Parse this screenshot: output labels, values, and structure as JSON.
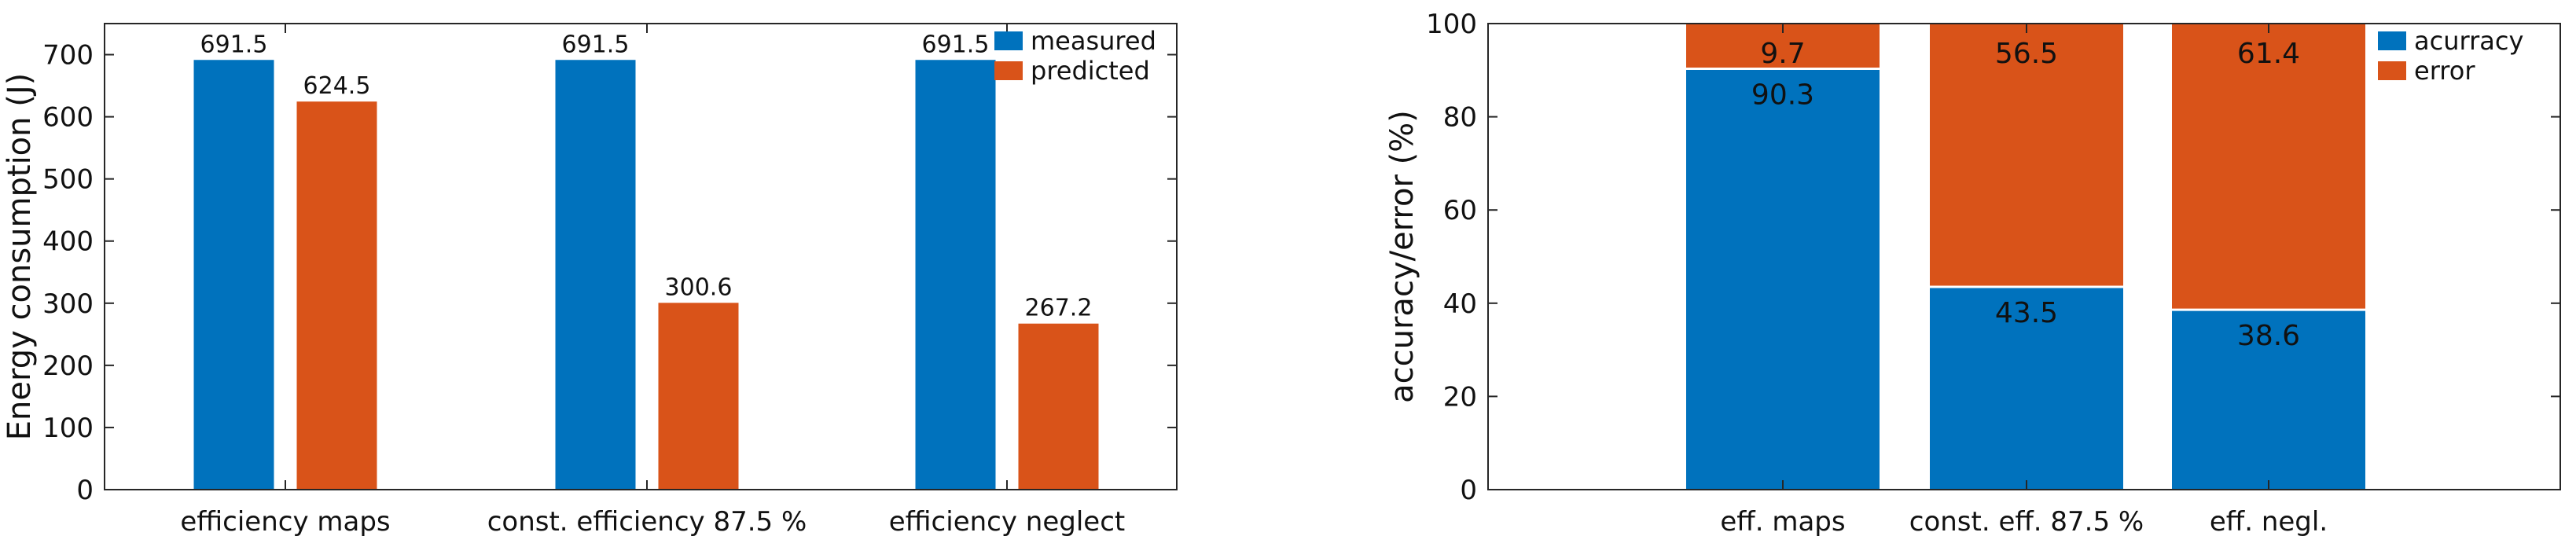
{
  "chart_data": [
    {
      "type": "bar",
      "title": "",
      "xlabel": "",
      "ylabel": "Energy consumption (J)",
      "ylim": [
        0,
        750
      ],
      "yticks": [
        0,
        100,
        200,
        300,
        400,
        500,
        600,
        700
      ],
      "categories": [
        "efficiency maps",
        "const. efficiency 87.5 %",
        "efficiency neglect"
      ],
      "series": [
        {
          "name": "measured",
          "color": "#0072BD",
          "values": [
            691.5,
            691.5,
            691.5
          ]
        },
        {
          "name": "predicted",
          "color": "#D95319",
          "values": [
            624.5,
            300.6,
            267.2
          ]
        }
      ],
      "data_labels": [
        [
          "691.5",
          "691.5",
          "691.5"
        ],
        [
          "624.5",
          "300.6",
          "267.2"
        ]
      ],
      "legend": "top-right",
      "grid": false
    },
    {
      "type": "bar",
      "stacked": true,
      "title": "",
      "xlabel": "",
      "ylabel": "accuracy/error (%)",
      "ylim": [
        0,
        100
      ],
      "yticks": [
        0,
        20,
        40,
        60,
        80,
        100
      ],
      "categories": [
        "eff. maps",
        "const. eff. 87.5 %",
        "eff. negl."
      ],
      "series": [
        {
          "name": "acurracy",
          "color": "#0072BD",
          "values": [
            90.3,
            43.5,
            38.6
          ]
        },
        {
          "name": "error",
          "color": "#D95319",
          "values": [
            9.7,
            56.5,
            61.4
          ]
        }
      ],
      "data_labels": [
        [
          "90.3",
          "43.5",
          "38.6"
        ],
        [
          "9.7",
          "56.5",
          "61.4"
        ]
      ],
      "legend": "top-right",
      "grid": false
    }
  ]
}
